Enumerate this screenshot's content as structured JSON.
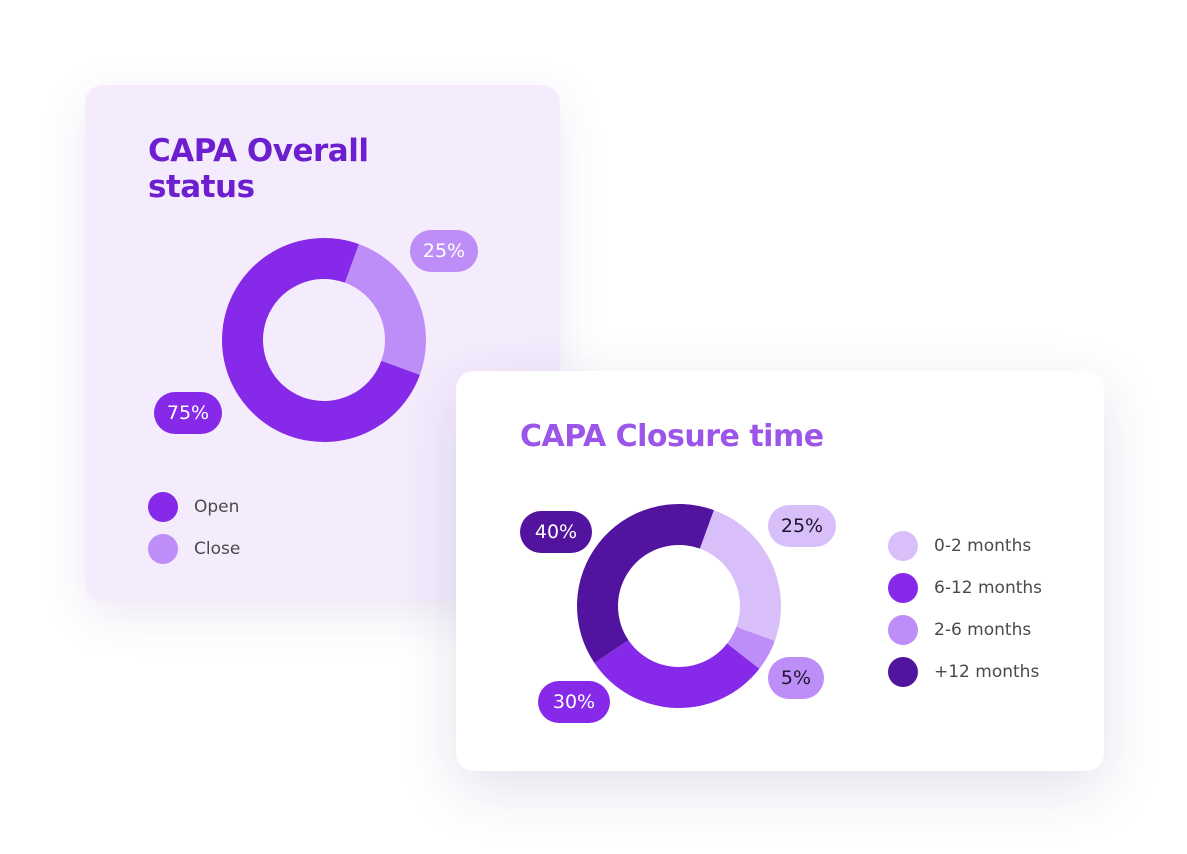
{
  "colors": {
    "title_dark": "#6d1fd0",
    "title_light": "#9b55e8",
    "text_dark": "#1e1530",
    "text_light": "#ffffff"
  },
  "chart_data": [
    {
      "type": "pie",
      "title": "CAPA Overall status",
      "slices": [
        {
          "name": "Close",
          "value": 25,
          "label": "25%",
          "color": "#bd8ef7",
          "label_text_color": "#ffffff"
        },
        {
          "name": "Open",
          "value": 75,
          "label": "75%",
          "color": "#8629e9",
          "label_text_color": "#ffffff"
        }
      ],
      "legend": [
        {
          "label": "Open",
          "color": "#8629e9"
        },
        {
          "label": "Close",
          "color": "#bd8ef7"
        }
      ],
      "legend_position": "bottom-left",
      "donut": true
    },
    {
      "type": "pie",
      "title": "CAPA Closure time",
      "slices": [
        {
          "name": "0-2 months",
          "value": 25,
          "label": "25%",
          "color": "#d9bff9",
          "label_text_color": "#1e1530"
        },
        {
          "name": "2-6 months",
          "value": 5,
          "label": "5%",
          "color": "#bd8ef7",
          "label_text_color": "#1e1530"
        },
        {
          "name": "6-12 months",
          "value": 30,
          "label": "30%",
          "color": "#8629e9",
          "label_text_color": "#ffffff"
        },
        {
          "name": "+12 months",
          "value": 40,
          "label": "40%",
          "color": "#52149e",
          "label_text_color": "#ffffff"
        }
      ],
      "legend": [
        {
          "label": "0-2 months",
          "color": "#d9bff9"
        },
        {
          "label": "6-12 months",
          "color": "#8629e9"
        },
        {
          "label": "2-6 months",
          "color": "#bd8ef7"
        },
        {
          "label": "+12 months",
          "color": "#52149e"
        }
      ],
      "legend_position": "right",
      "donut": true
    }
  ]
}
